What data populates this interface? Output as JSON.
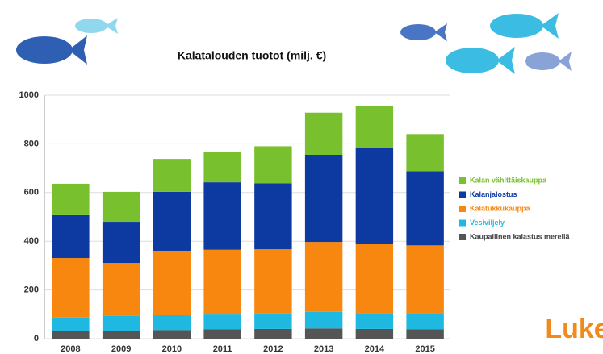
{
  "chart_data": {
    "type": "stacked-bar",
    "title": "Kalatalouden tuotot (milj. €)",
    "categories": [
      "2008",
      "2009",
      "2010",
      "2011",
      "2012",
      "2013",
      "2014",
      "2015"
    ],
    "series": [
      {
        "name": "Kaupallinen kalastus merellä",
        "color": "#555555",
        "values": [
          33,
          30,
          35,
          38,
          40,
          42,
          40,
          38
        ]
      },
      {
        "name": "Vesiviljely",
        "color": "#1fb8e0",
        "values": [
          54,
          63,
          61,
          61,
          63,
          68,
          65,
          66
        ]
      },
      {
        "name": "Kalatukkukauppa",
        "color": "#f7870f",
        "values": [
          244,
          218,
          265,
          266,
          264,
          287,
          283,
          279
        ]
      },
      {
        "name": "Kalanjalostus",
        "color": "#0d3aa0",
        "values": [
          176,
          169,
          242,
          277,
          271,
          358,
          395,
          304
        ]
      },
      {
        "name": "Kalan vähittäiskauppa",
        "color": "#78c02e",
        "values": [
          129,
          123,
          135,
          126,
          152,
          173,
          173,
          153
        ]
      }
    ],
    "ylim": [
      0,
      1000
    ],
    "yticks": [
      0,
      200,
      400,
      600,
      800,
      1000
    ],
    "grid": true,
    "logo": "Luke"
  }
}
